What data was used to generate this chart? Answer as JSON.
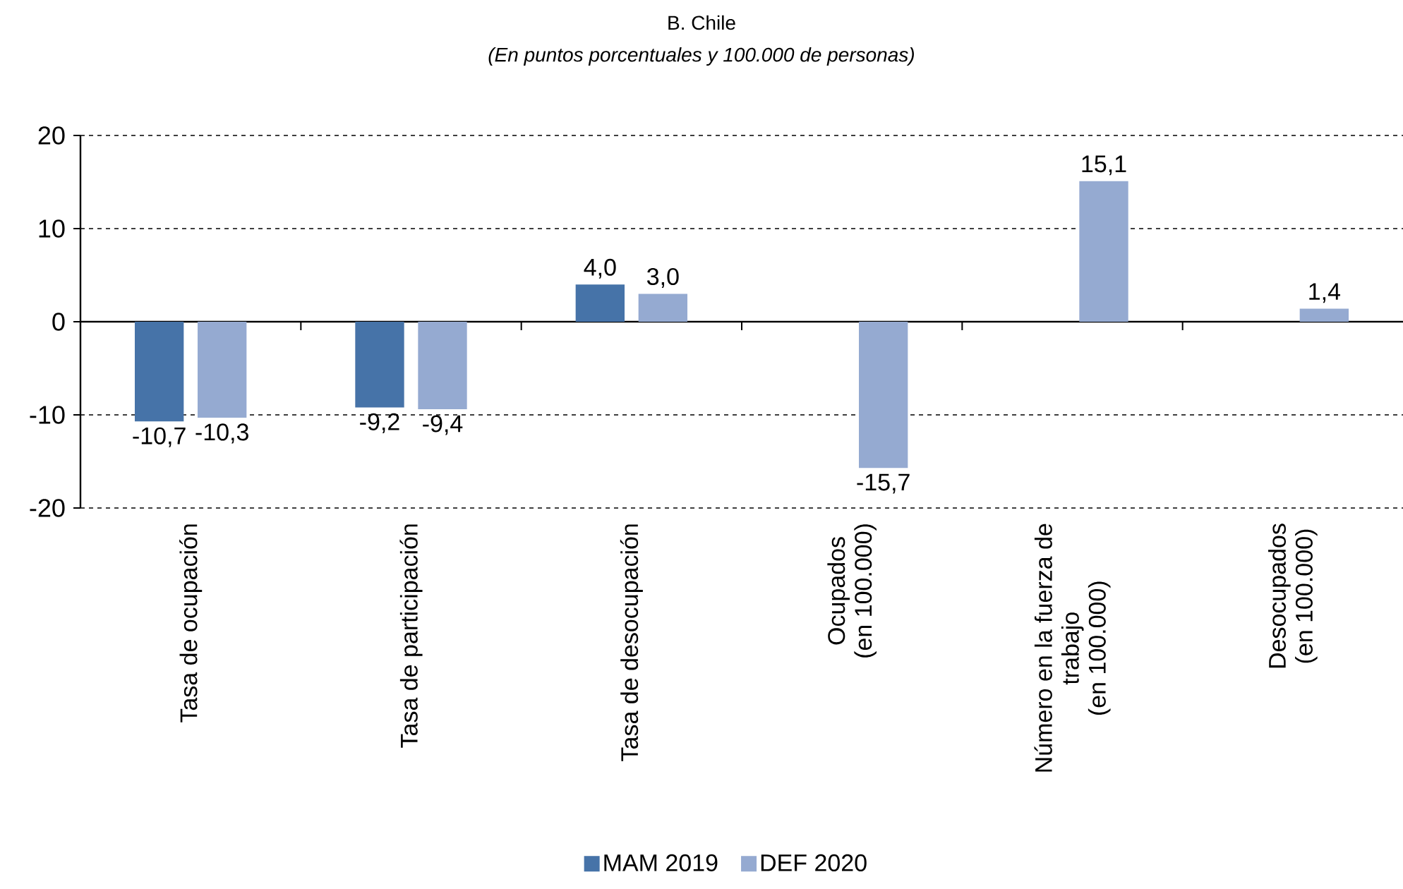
{
  "chart_data": {
    "type": "bar",
    "title": "B. Chile",
    "subtitle": "(En puntos porcentuales y 100.000 de personas)",
    "categories": [
      "Tasa de ocupación",
      "Tasa de participación",
      "Tasa de desocupación",
      "Ocupados\n(en 100.000)",
      "Número en la fuerza de\ntrabajo\n(en 100.000)",
      "Desocupados\n(en 100.000)"
    ],
    "series": [
      {
        "name": "MAM 2019",
        "color": "#4673a8",
        "values": [
          -10.7,
          -9.2,
          4.0,
          null,
          null,
          null
        ],
        "value_labels": [
          "-10,7",
          "-9,2",
          "4,0",
          null,
          null,
          null
        ]
      },
      {
        "name": "DEF 2020",
        "color": "#95aad1",
        "values": [
          -10.3,
          -9.4,
          3.0,
          -15.7,
          15.1,
          1.4
        ],
        "value_labels": [
          "-10,3",
          "-9,4",
          "3,0",
          "-15,7",
          "15,1",
          "1,4"
        ]
      }
    ],
    "ylim": [
      -20,
      20
    ],
    "yticks": [
      -20,
      -10,
      0,
      10,
      20
    ],
    "grid": "y",
    "legend": "bottom"
  }
}
